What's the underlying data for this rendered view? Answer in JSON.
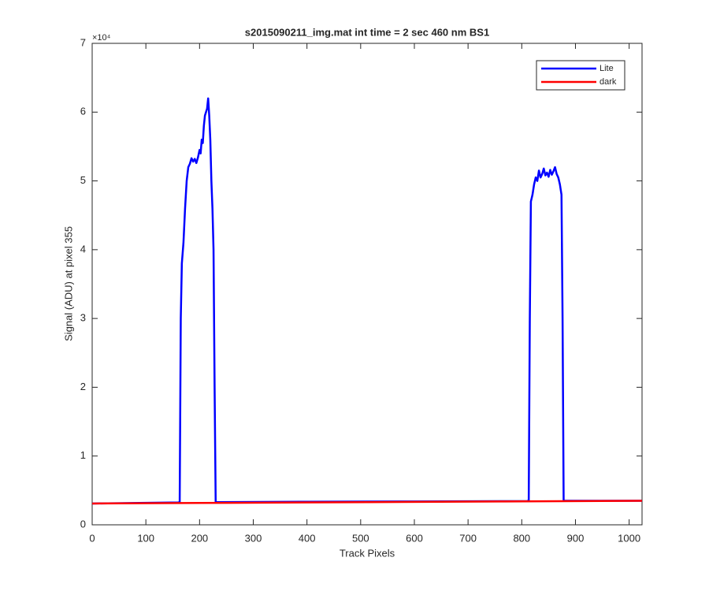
{
  "chart_data": {
    "type": "line",
    "title": "s2015090211_img.mat int time = 2 sec  460 nm BS1",
    "x_label": "Track Pixels",
    "y_label": "Signal (ADU) at pixel 355",
    "y_exponent_label": "×10⁴",
    "xlim": [
      0,
      1024
    ],
    "xticks": [
      0,
      100,
      200,
      300,
      400,
      500,
      600,
      700,
      800,
      900,
      1000
    ],
    "ylim": [
      0,
      70000
    ],
    "yticks": [
      {
        "value": 0,
        "label": "0"
      },
      {
        "value": 10000,
        "label": "1"
      },
      {
        "value": 20000,
        "label": "2"
      },
      {
        "value": 30000,
        "label": "3"
      },
      {
        "value": 40000,
        "label": "4"
      },
      {
        "value": 50000,
        "label": "5"
      },
      {
        "value": 60000,
        "label": "6"
      },
      {
        "value": 70000,
        "label": "7"
      }
    ],
    "grid": false,
    "legend": "top-right",
    "series": [
      {
        "name": "Lite",
        "color": "#0000ff",
        "x": [
          0,
          160,
          163,
          165,
          167,
          170,
          173,
          176,
          179,
          182,
          185,
          188,
          191,
          194,
          197,
          200,
          202,
          204,
          206,
          208,
          210,
          212,
          214,
          216,
          218,
          220,
          222,
          224,
          226,
          228,
          230,
          400,
          600,
          810,
          813,
          815,
          817,
          820,
          823,
          826,
          829,
          832,
          835,
          838,
          841,
          844,
          847,
          850,
          853,
          856,
          859,
          862,
          865,
          868,
          871,
          874,
          876,
          878,
          1024
        ],
        "values": [
          3100,
          3250,
          3300,
          30000,
          38000,
          41000,
          46000,
          50000,
          52000,
          52500,
          53300,
          52800,
          53200,
          52600,
          53400,
          54500,
          54000,
          56000,
          55500,
          58000,
          59500,
          60000,
          60500,
          62000,
          59500,
          56000,
          50000,
          46000,
          40000,
          20000,
          3300,
          3350,
          3400,
          3450,
          3500,
          30000,
          47000,
          48000,
          49500,
          50500,
          50000,
          51500,
          50500,
          51000,
          51800,
          50800,
          51200,
          50600,
          51600,
          50900,
          51400,
          52000,
          51000,
          50500,
          49500,
          48000,
          30000,
          3500,
          3500
        ]
      },
      {
        "name": "dark",
        "color": "#ff0000",
        "x": [
          0,
          256,
          512,
          768,
          1024
        ],
        "values": [
          3100,
          3200,
          3300,
          3400,
          3500
        ]
      }
    ]
  }
}
